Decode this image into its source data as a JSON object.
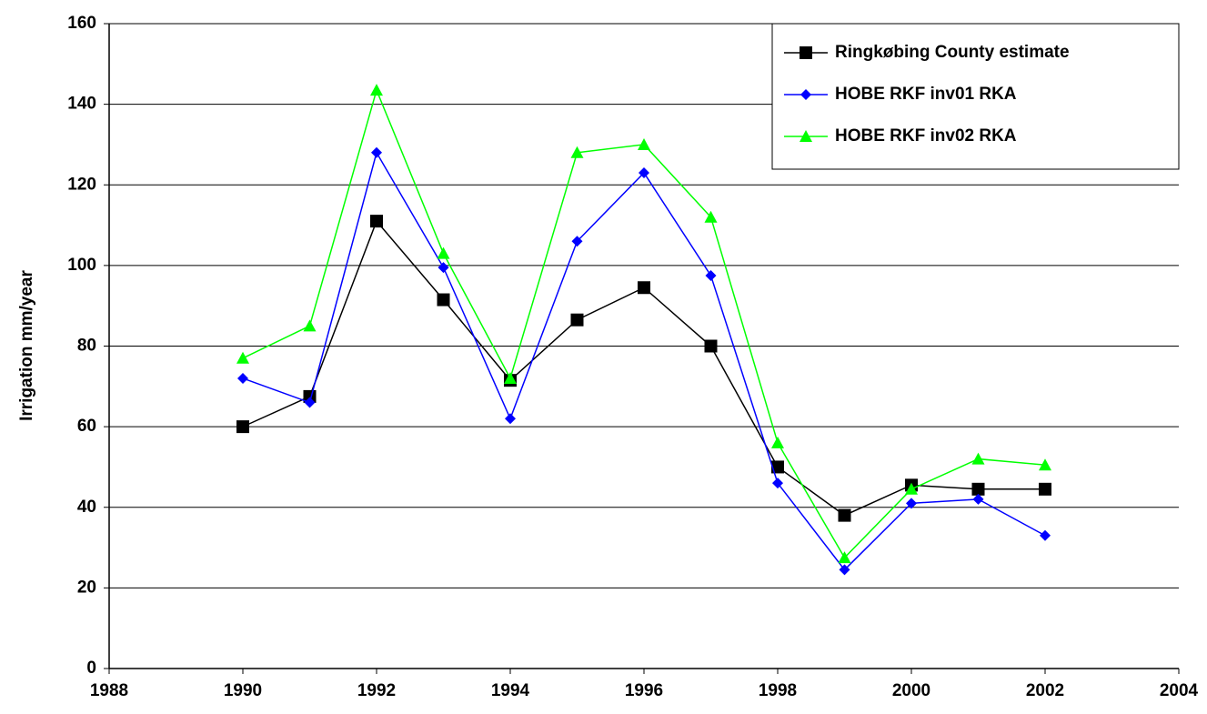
{
  "chart_data": {
    "type": "line",
    "y_label": "Irrigation mm/year",
    "x": [
      1990,
      1991,
      1992,
      1993,
      1994,
      1995,
      1996,
      1997,
      1998,
      1999,
      2000,
      2001,
      2002
    ],
    "series": [
      {
        "name": "Ringkøbing County estimate",
        "color": "#000000",
        "marker": "square",
        "values": [
          60,
          67.5,
          111,
          91.5,
          71.5,
          86.5,
          94.5,
          80,
          50,
          38,
          45.5,
          44.5,
          44.5
        ]
      },
      {
        "name": "HOBE RKF inv01 RKA",
        "color": "#0000ff",
        "marker": "diamond",
        "values": [
          72,
          66,
          128,
          99.5,
          62,
          106,
          123,
          97.5,
          46,
          24.5,
          41,
          42,
          33
        ]
      },
      {
        "name": "HOBE RKF inv02 RKA",
        "color": "#00ff00",
        "marker": "triangle",
        "values": [
          77,
          85,
          143.5,
          103,
          72,
          128,
          130,
          112,
          56,
          27.5,
          44.5,
          52,
          50.5
        ]
      }
    ],
    "xlim": [
      1988,
      2004
    ],
    "xticks": [
      1988,
      1990,
      1992,
      1994,
      1996,
      1998,
      2000,
      2002,
      2004
    ],
    "ylim": [
      0,
      160
    ],
    "yticks": [
      0,
      20,
      40,
      60,
      80,
      100,
      120,
      140,
      160
    ],
    "grid": true,
    "legend": "upper right"
  }
}
